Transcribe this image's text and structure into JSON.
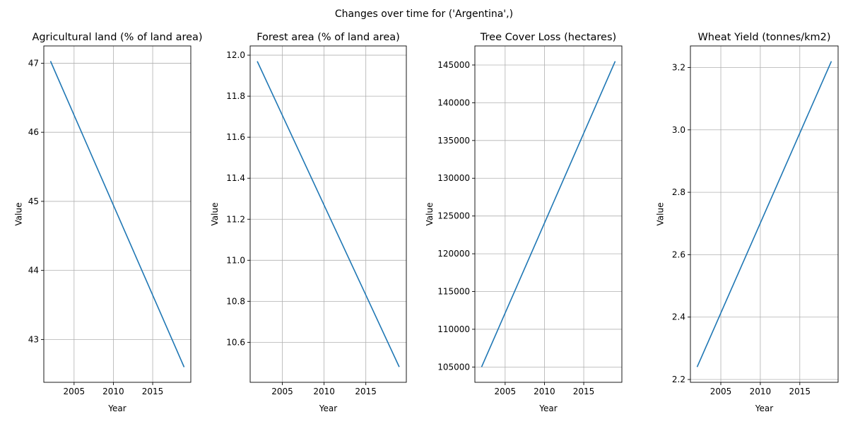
{
  "figure": {
    "title": "Changes over time for ('Argentina',)"
  },
  "chart_data": [
    {
      "type": "line",
      "title": "Agricultural land (% of land area)",
      "xlabel": "Year",
      "ylabel": "Value",
      "x": [
        2002,
        2019
      ],
      "series": [
        {
          "values": [
            47.03,
            42.6
          ]
        }
      ],
      "xlim": [
        2001.15,
        2019.85
      ],
      "ylim": [
        42.38,
        47.25
      ],
      "xticks": [
        2005,
        2010,
        2015
      ],
      "yticks": [
        43,
        44,
        45,
        46,
        47
      ],
      "ytick_labels": [
        "43",
        "44",
        "45",
        "46",
        "47"
      ],
      "grid": true,
      "line_color": "#1f77b4"
    },
    {
      "type": "line",
      "title": "Forest area (% of land area)",
      "xlabel": "Year",
      "ylabel": "Value",
      "x": [
        2002,
        2019
      ],
      "series": [
        {
          "values": [
            11.97,
            10.48
          ]
        }
      ],
      "xlim": [
        2001.15,
        2019.85
      ],
      "ylim": [
        10.405,
        12.045
      ],
      "xticks": [
        2005,
        2010,
        2015
      ],
      "yticks": [
        10.6,
        10.8,
        11.0,
        11.2,
        11.4,
        11.6,
        11.8,
        12.0
      ],
      "ytick_labels": [
        "10.6",
        "10.8",
        "11.0",
        "11.2",
        "11.4",
        "11.6",
        "11.8",
        "12.0"
      ],
      "grid": true,
      "line_color": "#1f77b4"
    },
    {
      "type": "line",
      "title": "Tree Cover Loss (hectares)",
      "xlabel": "Year",
      "ylabel": "Value",
      "x": [
        2002,
        2019
      ],
      "series": [
        {
          "values": [
            105000,
            145500
          ]
        }
      ],
      "xlim": [
        2001.15,
        2019.85
      ],
      "ylim": [
        102975,
        147525
      ],
      "xticks": [
        2005,
        2010,
        2015
      ],
      "yticks": [
        105000,
        110000,
        115000,
        120000,
        125000,
        130000,
        135000,
        140000,
        145000
      ],
      "ytick_labels": [
        "105000",
        "110000",
        "115000",
        "120000",
        "125000",
        "130000",
        "135000",
        "140000",
        "145000"
      ],
      "grid": true,
      "line_color": "#1f77b4"
    },
    {
      "type": "line",
      "title": "Wheat Yield (tonnes/km2)",
      "xlabel": "Year",
      "ylabel": "Value",
      "x": [
        2002,
        2019
      ],
      "series": [
        {
          "values": [
            2.24,
            3.22
          ]
        }
      ],
      "xlim": [
        2001.15,
        2019.85
      ],
      "ylim": [
        2.191,
        3.269
      ],
      "xticks": [
        2005,
        2010,
        2015
      ],
      "yticks": [
        2.2,
        2.4,
        2.6,
        2.8,
        3.0,
        3.2
      ],
      "ytick_labels": [
        "2.2",
        "2.4",
        "2.6",
        "2.8",
        "3.0",
        "3.2"
      ],
      "grid": true,
      "line_color": "#1f77b4"
    }
  ]
}
